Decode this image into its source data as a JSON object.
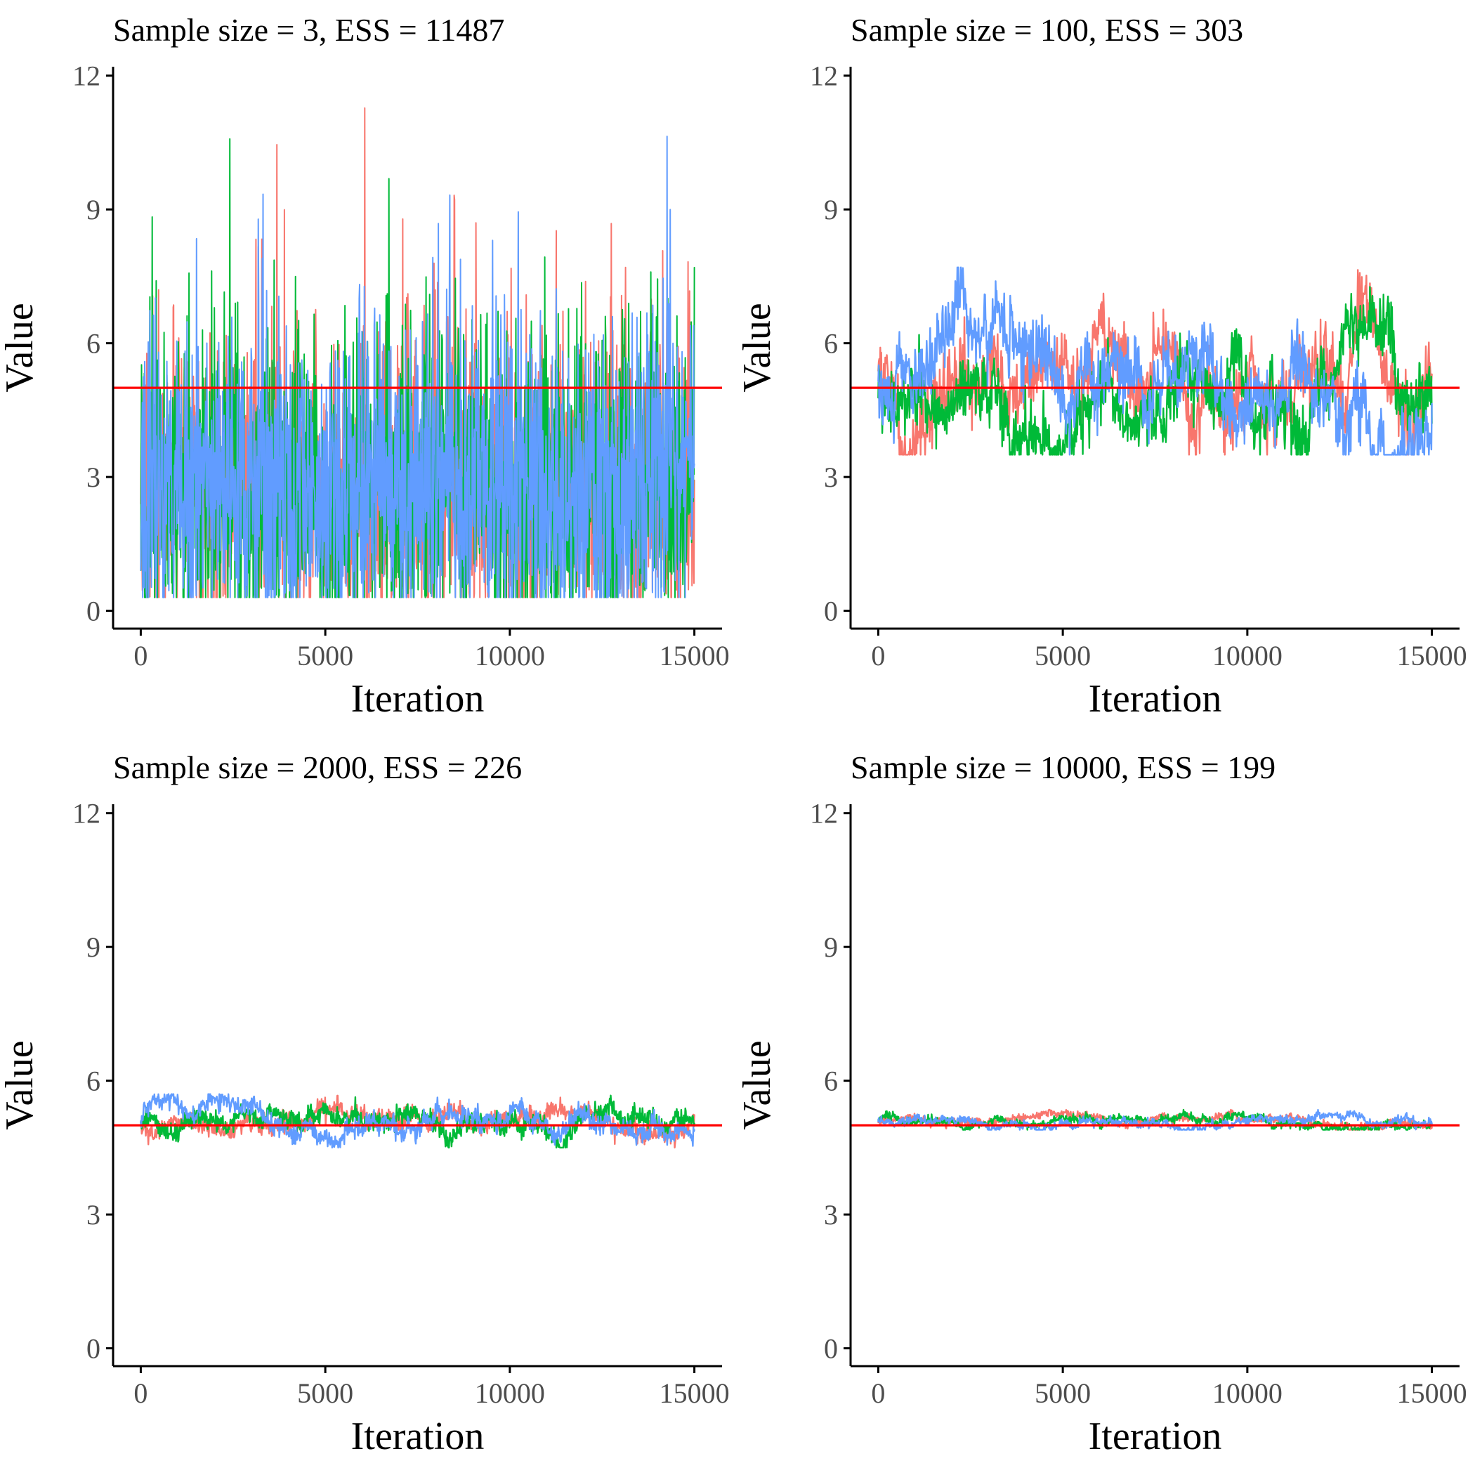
{
  "colors": {
    "chain_1": "#F8766D",
    "chain_2": "#00BA38",
    "chain_3": "#619CFF",
    "reference": "#FF0000",
    "axis": "#000000",
    "tick_text": "#4D4D4D"
  },
  "chart_data": [
    {
      "type": "line",
      "title": "Sample size = 3, ESS = 11487",
      "xlabel": "Iteration",
      "ylabel": "Value",
      "xlim": [
        -750,
        15750
      ],
      "ylim": [
        -0.4,
        12.2
      ],
      "xticks": [
        0,
        5000,
        10000,
        15000
      ],
      "yticks": [
        0,
        3,
        6,
        9,
        12
      ],
      "reference_line": 5,
      "iterations": [
        0,
        15000
      ],
      "band": {
        "center": 2.9,
        "low": 1.3,
        "high": 5.3,
        "min": 0.3,
        "max": 11.6
      },
      "series": [
        {
          "color": "chain_1",
          "seed": 11
        },
        {
          "color": "chain_2",
          "seed": 23
        },
        {
          "color": "chain_3",
          "seed": 37
        }
      ],
      "grid": false,
      "legend": "none"
    },
    {
      "type": "line",
      "title": "Sample size = 100, ESS = 303",
      "xlabel": "Iteration",
      "ylabel": "Value",
      "xlim": [
        -750,
        15750
      ],
      "ylim": [
        -0.4,
        12.2
      ],
      "xticks": [
        0,
        5000,
        10000,
        15000
      ],
      "yticks": [
        0,
        3,
        6,
        9,
        12
      ],
      "reference_line": 5,
      "iterations": [
        0,
        15000
      ],
      "band": {
        "center": 5.1,
        "low": 4.2,
        "high": 6.2,
        "min": 3.5,
        "max": 7.7
      },
      "series": [
        {
          "color": "chain_1",
          "seed": 41
        },
        {
          "color": "chain_2",
          "seed": 53
        },
        {
          "color": "chain_3",
          "seed": 67
        }
      ],
      "grid": false,
      "legend": "none"
    },
    {
      "type": "line",
      "title": "Sample size = 2000, ESS = 226",
      "xlabel": "Iteration",
      "ylabel": "Value",
      "xlim": [
        -750,
        15750
      ],
      "ylim": [
        -0.4,
        12.2
      ],
      "xticks": [
        0,
        5000,
        10000,
        15000
      ],
      "yticks": [
        0,
        3,
        6,
        9,
        12
      ],
      "reference_line": 5,
      "iterations": [
        0,
        15000
      ],
      "band": {
        "center": 5.05,
        "low": 4.75,
        "high": 5.35,
        "min": 4.5,
        "max": 5.7
      },
      "series": [
        {
          "color": "chain_1",
          "seed": 71
        },
        {
          "color": "chain_2",
          "seed": 83
        },
        {
          "color": "chain_3",
          "seed": 97
        }
      ],
      "grid": false,
      "legend": "none"
    },
    {
      "type": "line",
      "title": "Sample size = 10000, ESS = 199",
      "xlabel": "Iteration",
      "ylabel": "Value",
      "xlim": [
        -750,
        15750
      ],
      "ylim": [
        -0.4,
        12.2
      ],
      "xticks": [
        0,
        5000,
        10000,
        15000
      ],
      "yticks": [
        0,
        3,
        6,
        9,
        12
      ],
      "reference_line": 5,
      "iterations": [
        0,
        15000
      ],
      "band": {
        "center": 5.1,
        "low": 4.98,
        "high": 5.22,
        "min": 4.9,
        "max": 5.35
      },
      "series": [
        {
          "color": "chain_1",
          "seed": 101
        },
        {
          "color": "chain_2",
          "seed": 113
        },
        {
          "color": "chain_3",
          "seed": 127
        }
      ],
      "grid": false,
      "legend": "none"
    }
  ]
}
